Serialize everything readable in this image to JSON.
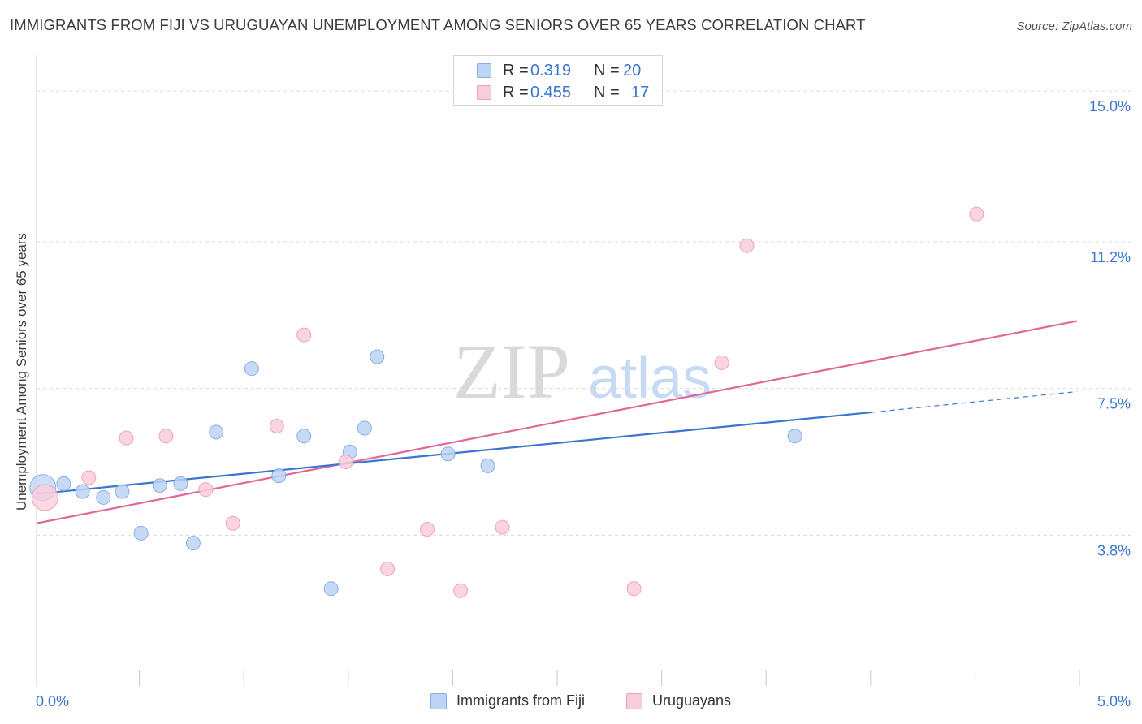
{
  "header": {
    "title": "IMMIGRANTS FROM FIJI VS URUGUAYAN UNEMPLOYMENT AMONG SENIORS OVER 65 YEARS CORRELATION CHART",
    "source": "Source: ZipAtlas.com"
  },
  "legend_top": {
    "rows": [
      {
        "r_label": "R =",
        "r_value": "0.319",
        "n_label": "N =",
        "n_value": "20"
      },
      {
        "r_label": "R =",
        "r_value": "0.455",
        "n_label": "N =",
        "n_value": "17"
      }
    ]
  },
  "legend_bottom": {
    "items": [
      {
        "label": "Immigrants from Fiji"
      },
      {
        "label": "Uruguayans"
      }
    ]
  },
  "watermark": {
    "zip": "ZIP",
    "atlas": "atlas"
  },
  "colors": {
    "blue_fill": "#bcd4f5",
    "blue_stroke": "#89aee6",
    "blue_line": "#3a76d0",
    "pink_fill": "#f9ccd9",
    "pink_stroke": "#eea3b9",
    "pink_line": "#e0679a",
    "axis_text": "#3a76d0",
    "grid": "#dcdcdc"
  },
  "chart_data": {
    "type": "scatter",
    "title": "IMMIGRANTS FROM FIJI VS URUGUAYAN UNEMPLOYMENT AMONG SENIORS OVER 65 YEARS CORRELATION CHART",
    "xlabel": "",
    "ylabel": "Unemployment Among Seniors over 65 years",
    "xlim": [
      0.0,
      5.0
    ],
    "ylim": [
      0.0,
      15.7
    ],
    "x_tick_labels": [
      {
        "value": 0.0,
        "label": "0.0%"
      },
      {
        "value": 5.0,
        "label": "5.0%"
      }
    ],
    "y_tick_labels": [
      {
        "value": 3.8,
        "label": "3.8%"
      },
      {
        "value": 7.5,
        "label": "7.5%"
      },
      {
        "value": 11.2,
        "label": "11.2%"
      },
      {
        "value": 15.0,
        "label": "15.0%"
      }
    ],
    "x_minor_ticks": [
      0.5,
      1.0,
      1.5,
      2.0,
      2.5,
      3.0,
      3.5,
      4.0,
      4.5,
      5.0
    ],
    "grid": true,
    "series": [
      {
        "name": "Immigrants from Fiji",
        "color": "#bcd4f5",
        "points": [
          {
            "x": 0.03,
            "y": 5.0,
            "size": "large"
          },
          {
            "x": 0.13,
            "y": 5.1
          },
          {
            "x": 0.22,
            "y": 4.9
          },
          {
            "x": 0.32,
            "y": 4.75
          },
          {
            "x": 0.41,
            "y": 4.9
          },
          {
            "x": 0.5,
            "y": 3.85
          },
          {
            "x": 0.59,
            "y": 5.05
          },
          {
            "x": 0.69,
            "y": 5.1
          },
          {
            "x": 0.75,
            "y": 3.6
          },
          {
            "x": 0.86,
            "y": 6.4
          },
          {
            "x": 1.03,
            "y": 8.0
          },
          {
            "x": 1.16,
            "y": 5.3
          },
          {
            "x": 1.28,
            "y": 6.3
          },
          {
            "x": 1.41,
            "y": 2.45
          },
          {
            "x": 1.5,
            "y": 5.9
          },
          {
            "x": 1.57,
            "y": 6.5
          },
          {
            "x": 1.63,
            "y": 8.3
          },
          {
            "x": 1.97,
            "y": 5.85
          },
          {
            "x": 2.16,
            "y": 5.55
          },
          {
            "x": 3.63,
            "y": 6.3
          }
        ],
        "trendline": {
          "x0": 0.0,
          "y0": 4.84,
          "x1": 4.0,
          "y1": 6.9,
          "dashed_to_x": 4.98,
          "dashed_to_y": 7.42
        }
      },
      {
        "name": "Uruguayans",
        "color": "#f9ccd9",
        "points": [
          {
            "x": 0.04,
            "y": 4.75,
            "size": "large"
          },
          {
            "x": 0.25,
            "y": 5.25
          },
          {
            "x": 0.43,
            "y": 6.25
          },
          {
            "x": 0.62,
            "y": 6.3
          },
          {
            "x": 0.81,
            "y": 4.95
          },
          {
            "x": 0.94,
            "y": 4.1
          },
          {
            "x": 1.15,
            "y": 6.55
          },
          {
            "x": 1.28,
            "y": 8.85
          },
          {
            "x": 1.48,
            "y": 5.65
          },
          {
            "x": 1.68,
            "y": 2.95
          },
          {
            "x": 1.87,
            "y": 3.95
          },
          {
            "x": 2.03,
            "y": 2.4
          },
          {
            "x": 2.23,
            "y": 4.0
          },
          {
            "x": 2.86,
            "y": 2.45
          },
          {
            "x": 3.28,
            "y": 8.15
          },
          {
            "x": 3.4,
            "y": 11.1
          },
          {
            "x": 4.5,
            "y": 11.9
          }
        ],
        "trendline": {
          "x0": 0.0,
          "y0": 4.1,
          "x1": 4.98,
          "y1": 9.2
        }
      }
    ]
  }
}
